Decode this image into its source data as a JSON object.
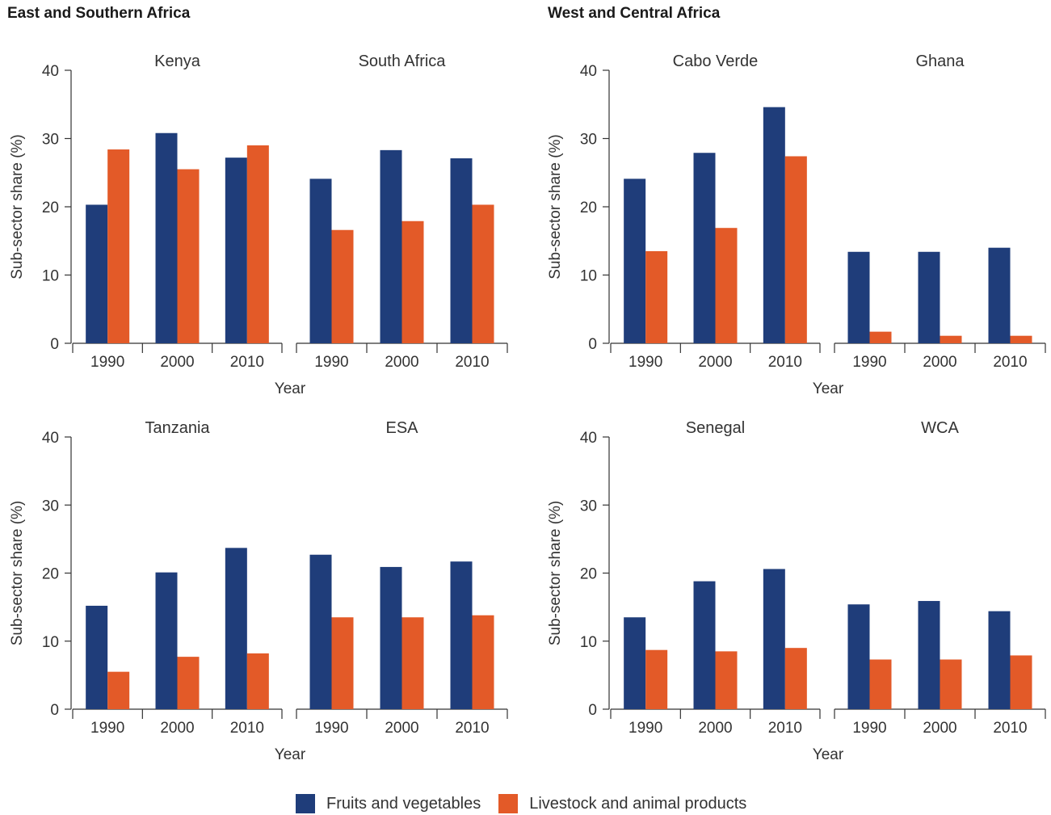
{
  "regions": [
    {
      "title": "East and Southern Africa"
    },
    {
      "title": "West and Central Africa"
    }
  ],
  "legend": [
    {
      "name": "Fruits and vegetables",
      "color": "#1f3d7a"
    },
    {
      "name": "Livestock and animal products",
      "color": "#e35a28"
    }
  ],
  "chart_data": [
    {
      "type": "bar",
      "region": "East and Southern Africa",
      "ylabel": "Sub-sector share (%)",
      "xlabel": "Year",
      "ylim": [
        0,
        40
      ],
      "yticks": [
        0,
        10,
        20,
        30,
        40
      ],
      "categories": [
        "1990",
        "2000",
        "2010"
      ],
      "panels": [
        {
          "title": "Kenya",
          "series": [
            {
              "name": "Fruits and vegetables",
              "values": [
                20.3,
                30.8,
                27.2
              ]
            },
            {
              "name": "Livestock and animal products",
              "values": [
                28.4,
                25.5,
                29.0
              ]
            }
          ]
        },
        {
          "title": "South Africa",
          "series": [
            {
              "name": "Fruits and vegetables",
              "values": [
                24.1,
                28.3,
                27.1
              ]
            },
            {
              "name": "Livestock and animal products",
              "values": [
                16.6,
                17.9,
                20.3
              ]
            }
          ]
        }
      ]
    },
    {
      "type": "bar",
      "region": "West and Central Africa",
      "ylabel": "Sub-sector share (%)",
      "xlabel": "Year",
      "ylim": [
        0,
        40
      ],
      "yticks": [
        0,
        10,
        20,
        30,
        40
      ],
      "categories": [
        "1990",
        "2000",
        "2010"
      ],
      "panels": [
        {
          "title": "Cabo Verde",
          "series": [
            {
              "name": "Fruits and vegetables",
              "values": [
                24.1,
                27.9,
                34.6
              ]
            },
            {
              "name": "Livestock and animal products",
              "values": [
                13.5,
                16.9,
                27.4
              ]
            }
          ]
        },
        {
          "title": "Ghana",
          "series": [
            {
              "name": "Fruits and vegetables",
              "values": [
                13.4,
                13.4,
                14.0
              ]
            },
            {
              "name": "Livestock and animal products",
              "values": [
                1.7,
                1.1,
                1.1
              ]
            }
          ]
        }
      ]
    },
    {
      "type": "bar",
      "region": "East and Southern Africa",
      "ylabel": "Sub-sector share (%)",
      "xlabel": "Year",
      "ylim": [
        0,
        40
      ],
      "yticks": [
        0,
        10,
        20,
        30,
        40
      ],
      "categories": [
        "1990",
        "2000",
        "2010"
      ],
      "panels": [
        {
          "title": "Tanzania",
          "series": [
            {
              "name": "Fruits and vegetables",
              "values": [
                15.2,
                20.1,
                23.7
              ]
            },
            {
              "name": "Livestock and animal products",
              "values": [
                5.5,
                7.7,
                8.2
              ]
            }
          ]
        },
        {
          "title": "ESA",
          "series": [
            {
              "name": "Fruits and vegetables",
              "values": [
                22.7,
                20.9,
                21.7
              ]
            },
            {
              "name": "Livestock and animal products",
              "values": [
                13.5,
                13.5,
                13.8
              ]
            }
          ]
        }
      ]
    },
    {
      "type": "bar",
      "region": "West and Central Africa",
      "ylabel": "Sub-sector share (%)",
      "xlabel": "Year",
      "ylim": [
        0,
        40
      ],
      "yticks": [
        0,
        10,
        20,
        30,
        40
      ],
      "categories": [
        "1990",
        "2000",
        "2010"
      ],
      "panels": [
        {
          "title": "Senegal",
          "series": [
            {
              "name": "Fruits and vegetables",
              "values": [
                13.5,
                18.8,
                20.6
              ]
            },
            {
              "name": "Livestock and animal products",
              "values": [
                8.7,
                8.5,
                9.0
              ]
            }
          ]
        },
        {
          "title": "WCA",
          "series": [
            {
              "name": "Fruits and vegetables",
              "values": [
                15.4,
                15.9,
                14.4
              ]
            },
            {
              "name": "Livestock and animal products",
              "values": [
                7.3,
                7.3,
                7.9
              ]
            }
          ]
        }
      ]
    }
  ]
}
